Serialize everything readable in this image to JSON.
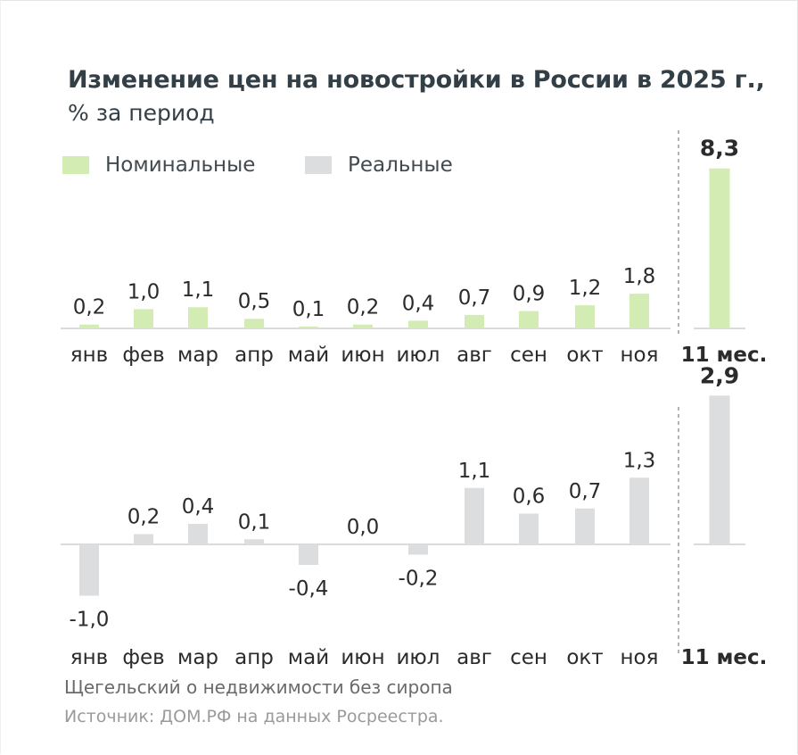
{
  "title": "Изменение цен на новостройки в России в 2025 г.,",
  "subtitle": "% за период",
  "legend": [
    {
      "label": "Номинальные",
      "color": "#d3ecb4"
    },
    {
      "label": "Реальные",
      "color": "#dcdddf"
    }
  ],
  "footer": {
    "author": "Щегельский о недвижимости без сиропа",
    "source": "Источник: ДОМ.РФ на данных Росреестра."
  },
  "chart_data": [
    {
      "type": "bar",
      "categories": [
        "янв",
        "фев",
        "мар",
        "апр",
        "май",
        "июн",
        "июл",
        "авг",
        "сен",
        "окт",
        "ноя"
      ],
      "series": [
        {
          "name": "Номинальные",
          "values": [
            0.2,
            1.0,
            1.1,
            0.5,
            0.1,
            0.2,
            0.4,
            0.7,
            0.9,
            1.2,
            1.8
          ],
          "labels": [
            "0,2",
            "1,0",
            "1,1",
            "0,5",
            "0,1",
            "0,2",
            "0,4",
            "0,7",
            "0,9",
            "1,2",
            "1,8"
          ]
        }
      ],
      "total": {
        "category": "11 мес.",
        "value": 8.3,
        "label": "8,3"
      },
      "color": "#d3ecb4"
    },
    {
      "type": "bar",
      "categories": [
        "янв",
        "фев",
        "мар",
        "апр",
        "май",
        "июн",
        "июл",
        "авг",
        "сен",
        "окт",
        "ноя"
      ],
      "series": [
        {
          "name": "Реальные",
          "values": [
            -1.0,
            0.2,
            0.4,
            0.1,
            -0.4,
            0.0,
            -0.2,
            1.1,
            0.6,
            0.7,
            1.3
          ],
          "labels": [
            "-1,0",
            "0,2",
            "0,4",
            "0,1",
            "-0,4",
            "0,0",
            "-0,2",
            "1,1",
            "0,6",
            "0,7",
            "1,3"
          ]
        }
      ],
      "total": {
        "category": "11 мес.",
        "value": 2.9,
        "label": "2,9"
      },
      "color": "#dcdddf"
    }
  ]
}
